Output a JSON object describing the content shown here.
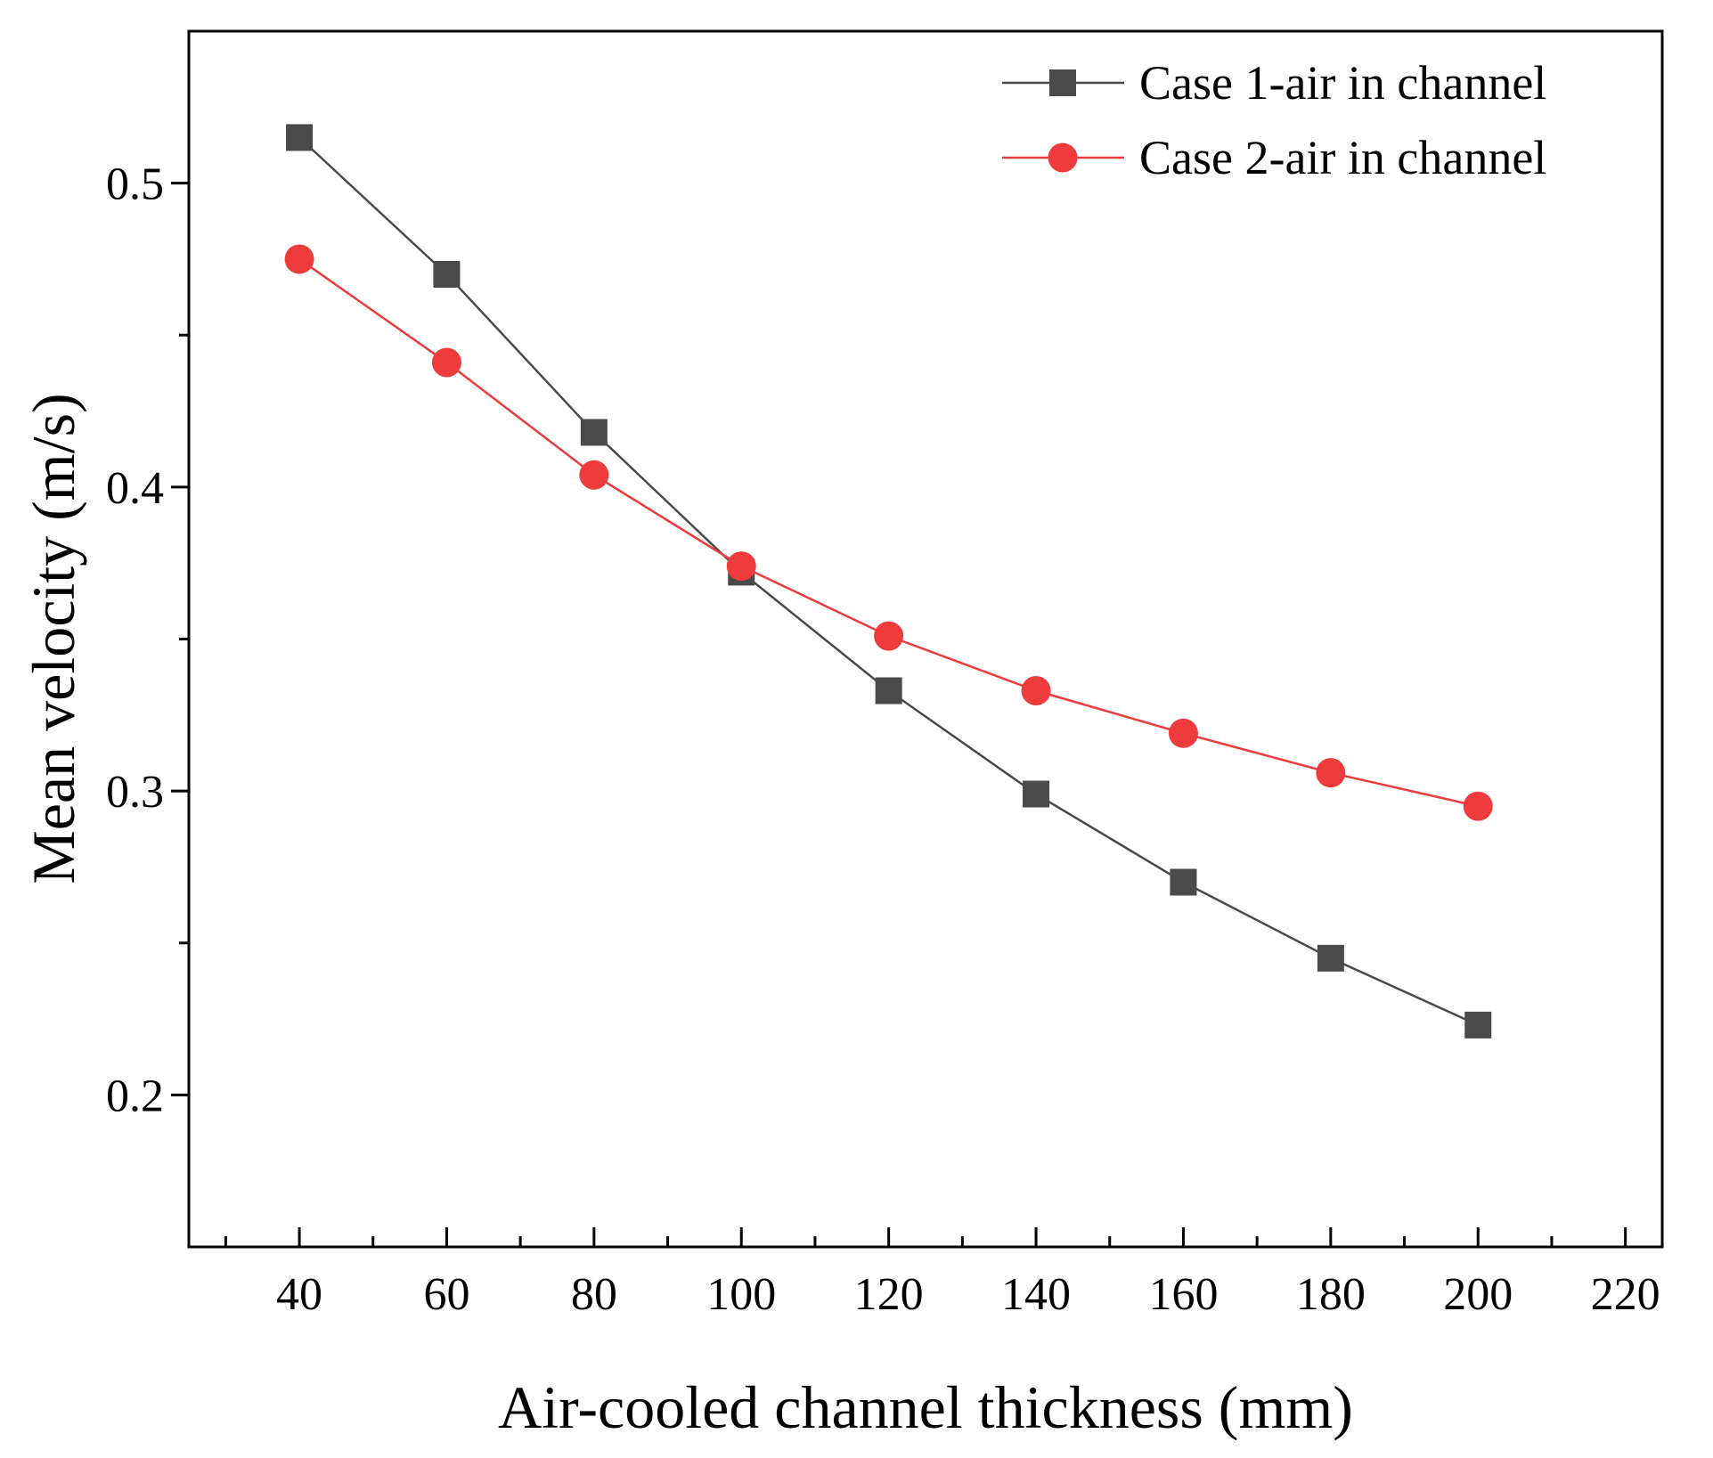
{
  "chart_data": {
    "type": "line",
    "title": "",
    "xlabel": "Air-cooled channel thickness (mm)",
    "ylabel": "Mean velocity (m/s)",
    "xlim": [
      25,
      225
    ],
    "ylim": [
      0.15,
      0.55
    ],
    "x_ticks": [
      40,
      60,
      80,
      100,
      120,
      140,
      160,
      180,
      200,
      220
    ],
    "x_tick_labels": [
      "40",
      "60",
      "80",
      "100",
      "120",
      "140",
      "160",
      "180",
      "200",
      "220"
    ],
    "y_ticks": [
      0.2,
      0.3,
      0.4,
      0.5
    ],
    "y_tick_labels": [
      "0.2",
      "0.3",
      "0.4",
      "0.5"
    ],
    "grid": false,
    "legend_position": "top-right",
    "x": [
      40,
      60,
      80,
      100,
      120,
      140,
      160,
      180,
      200
    ],
    "series": [
      {
        "name": "Case 1-air in channel",
        "marker": "square",
        "color": "#4a4a4a",
        "values": [
          0.515,
          0.47,
          0.418,
          0.372,
          0.333,
          0.299,
          0.27,
          0.245,
          0.223
        ]
      },
      {
        "name": "Case 2-air in channel",
        "marker": "circle",
        "color": "#ee3b3b",
        "values": [
          0.475,
          0.441,
          0.404,
          0.374,
          0.351,
          0.333,
          0.319,
          0.306,
          0.295
        ]
      }
    ]
  }
}
